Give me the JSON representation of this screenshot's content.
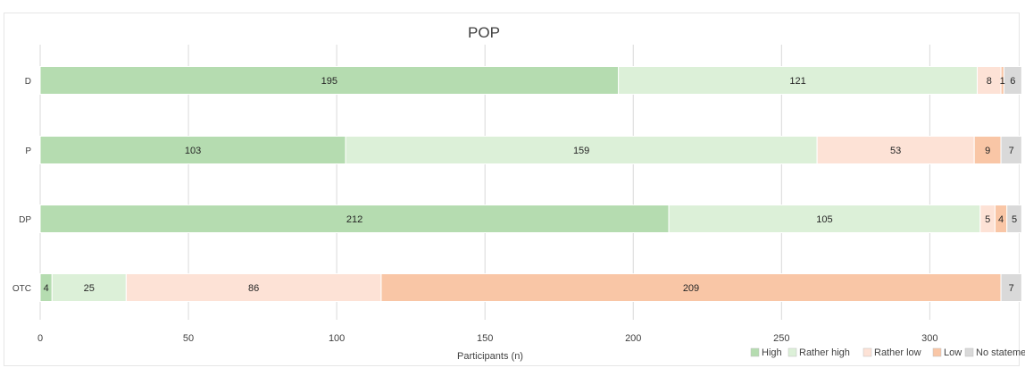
{
  "chart_data": {
    "type": "bar",
    "orientation": "horizontal",
    "stacked": true,
    "title": "POP",
    "xlabel": "Participants (n)",
    "ylabel": "",
    "xlim": [
      0,
      330
    ],
    "xticks": [
      0,
      50,
      100,
      150,
      200,
      250,
      300
    ],
    "grid": true,
    "legend_position": "bottom-right",
    "categories": [
      "D",
      "P",
      "DP",
      "OTC"
    ],
    "series": [
      {
        "name": "High",
        "color": "#b5dcb0",
        "values": [
          195,
          103,
          212,
          4
        ]
      },
      {
        "name": "Rather high",
        "color": "#dcf0d8",
        "values": [
          121,
          159,
          105,
          25
        ]
      },
      {
        "name": "Rather low",
        "color": "#fde2d6",
        "values": [
          8,
          53,
          5,
          86
        ]
      },
      {
        "name": "Low",
        "color": "#f9c6a6",
        "values": [
          1,
          9,
          4,
          209
        ]
      },
      {
        "name": "No statement",
        "color": "#d9d9d9",
        "values": [
          6,
          7,
          5,
          7
        ]
      }
    ]
  }
}
